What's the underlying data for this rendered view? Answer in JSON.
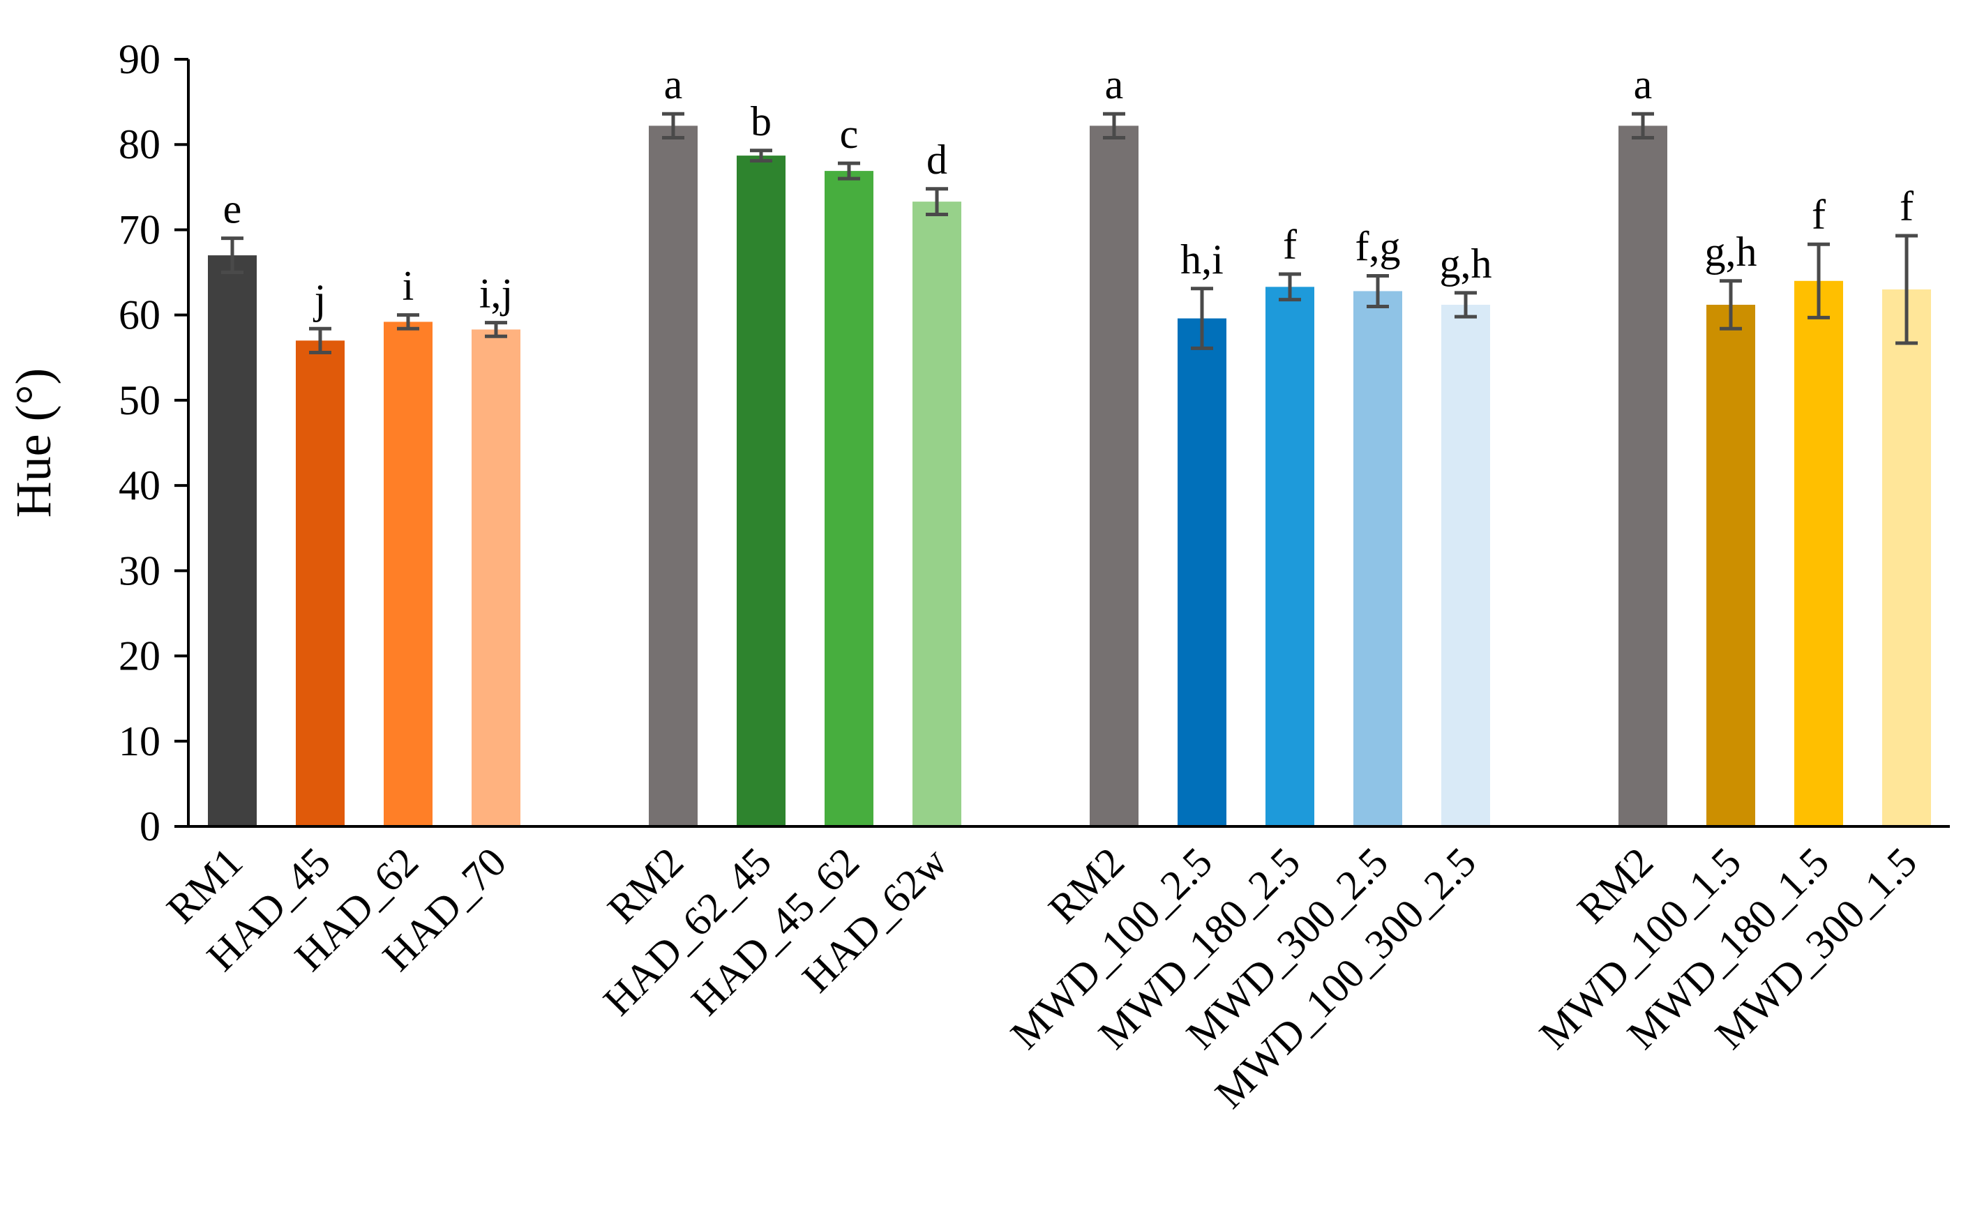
{
  "chart_data": {
    "type": "bar",
    "title": "",
    "xlabel": "",
    "ylabel": "Hue (°)",
    "ylim": [
      0,
      90
    ],
    "yticks": [
      0,
      10,
      20,
      30,
      40,
      50,
      60,
      70,
      80,
      90
    ],
    "grid": false,
    "legend": "none",
    "groups": [
      {
        "bars": [
          {
            "label": "RM1",
            "value": 67.0,
            "error": 2.0,
            "letter": "e",
            "color": "#404040"
          },
          {
            "label": "HAD_45",
            "value": 57.0,
            "error": 1.4,
            "letter": "j",
            "color": "#E05A0A"
          },
          {
            "label": "HAD_62",
            "value": 59.2,
            "error": 0.8,
            "letter": "i",
            "color": "#FF7F27"
          },
          {
            "label": "HAD_70",
            "value": 58.3,
            "error": 0.8,
            "letter": "i,j",
            "color": "#FFB27F"
          }
        ]
      },
      {
        "bars": [
          {
            "label": "RM2",
            "value": 82.2,
            "error": 1.4,
            "letter": "a",
            "color": "#767171"
          },
          {
            "label": "HAD_62_45",
            "value": 78.7,
            "error": 0.6,
            "letter": "b",
            "color": "#2E842E"
          },
          {
            "label": "HAD_45_62",
            "value": 76.9,
            "error": 0.9,
            "letter": "c",
            "color": "#47AE3E"
          },
          {
            "label": "HAD_62w",
            "value": 73.3,
            "error": 1.5,
            "letter": "d",
            "color": "#97D18A"
          }
        ]
      },
      {
        "bars": [
          {
            "label": "RM2",
            "value": 82.2,
            "error": 1.4,
            "letter": "a",
            "color": "#767171"
          },
          {
            "label": "MWD_100_2.5",
            "value": 59.6,
            "error": 3.5,
            "letter": "h,i",
            "color": "#0170BA"
          },
          {
            "label": "MWD_180_2.5",
            "value": 63.3,
            "error": 1.5,
            "letter": "f",
            "color": "#1E9ADA"
          },
          {
            "label": "MWD_300_2.5",
            "value": 62.8,
            "error": 1.8,
            "letter": "f,g",
            "color": "#8FC3E6"
          },
          {
            "label": "MWD_100_300_2.5",
            "value": 61.2,
            "error": 1.4,
            "letter": "g,h",
            "color": "#D9EAF7"
          }
        ]
      },
      {
        "bars": [
          {
            "label": "RM2",
            "value": 82.2,
            "error": 1.4,
            "letter": "a",
            "color": "#767171"
          },
          {
            "label": "MWD_100_1.5",
            "value": 61.2,
            "error": 2.8,
            "letter": "g,h",
            "color": "#CC8F00"
          },
          {
            "label": "MWD_180_1.5",
            "value": 64.0,
            "error": 4.3,
            "letter": "f",
            "color": "#FFBF00"
          },
          {
            "label": "MWD_300_1.5",
            "value": 63.0,
            "error": 6.3,
            "letter": "f",
            "color": "#FFE699"
          }
        ]
      }
    ]
  }
}
